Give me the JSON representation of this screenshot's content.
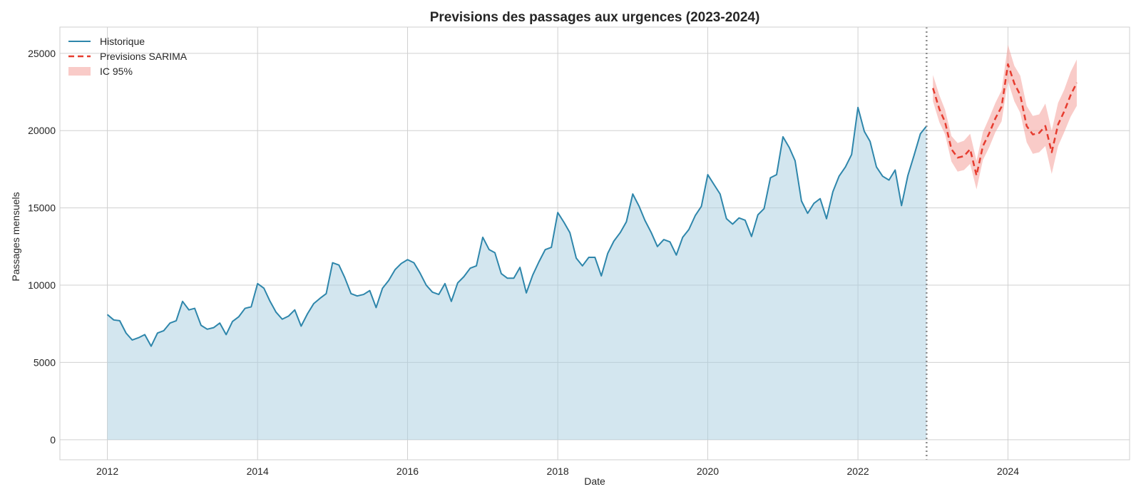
{
  "chart_data": {
    "type": "line",
    "title": "Previsions des passages aux urgences (2023-2024)",
    "xlabel": "Date",
    "ylabel": "Passages mensuels",
    "xlim": [
      "2011-05-15",
      "2025-08-15"
    ],
    "ylim": [
      -1300,
      26700
    ],
    "x_ticks": [
      "2012",
      "2014",
      "2016",
      "2018",
      "2020",
      "2022",
      "2024"
    ],
    "y_ticks": [
      0,
      5000,
      10000,
      15000,
      20000,
      25000
    ],
    "grid": true,
    "legend_position": "top-left",
    "forecast_start_marker": "2022-12",
    "colors": {
      "historique": "#2e86ab",
      "historique_fill": "#a8cde0",
      "previsions": "#e63c2f",
      "ic_fill": "#f4a19a",
      "grid": "#d0d0d0",
      "marker_line": "#8c8c8c"
    },
    "legend": [
      {
        "key": "historique",
        "label": "Historique",
        "style": "line"
      },
      {
        "key": "previsions",
        "label": "Previsions SARIMA",
        "style": "dashed"
      },
      {
        "key": "ic",
        "label": "IC 95%",
        "style": "band"
      }
    ],
    "series": [
      {
        "key": "historique",
        "start": "2012-01",
        "values": [
          8100,
          7750,
          7700,
          6900,
          6450,
          6600,
          6800,
          6050,
          6900,
          7050,
          7550,
          7700,
          8950,
          8400,
          8500,
          7400,
          7150,
          7250,
          7550,
          6800,
          7650,
          7950,
          8500,
          8600,
          10100,
          9800,
          9000,
          8250,
          7800,
          8000,
          8400,
          7350,
          8150,
          8800,
          9150,
          9450,
          11450,
          11300,
          10500,
          9450,
          9300,
          9400,
          9650,
          8550,
          9800,
          10300,
          11000,
          11400,
          11650,
          11450,
          10800,
          10000,
          9550,
          9400,
          10100,
          8950,
          10150,
          10550,
          11100,
          11250,
          13100,
          12300,
          12100,
          10750,
          10450,
          10450,
          11150,
          9500,
          10650,
          11500,
          12300,
          12450,
          14700,
          14050,
          13400,
          11750,
          11250,
          11800,
          11800,
          10600,
          12050,
          12850,
          13400,
          14100,
          15900,
          15100,
          14200,
          13400,
          12500,
          12950,
          12800,
          11950,
          13100,
          13600,
          14500,
          15100,
          17150,
          16500,
          15900,
          14300,
          13950,
          14350,
          14200,
          13150,
          14550,
          14950,
          16950,
          17150,
          19600,
          18900,
          18050,
          15450,
          14650,
          15300,
          15600,
          14300,
          16050,
          17050,
          17650,
          18450,
          21500,
          19950,
          19300,
          17650,
          17050,
          16800,
          17450,
          15150,
          17100,
          18400,
          19800,
          20300
        ]
      },
      {
        "key": "previsions",
        "start": "2023-01",
        "values": [
          22750,
          21400,
          20550,
          18800,
          18250,
          18350,
          18800,
          17100,
          19000,
          19800,
          20800,
          21550,
          24300,
          23050,
          22300,
          20300,
          19750,
          19850,
          20300,
          18600,
          20400,
          21250,
          22300,
          23100
        ],
        "ci_lower": [
          21900,
          20550,
          19750,
          18000,
          17350,
          17450,
          17850,
          16200,
          18100,
          18900,
          19900,
          20600,
          23200,
          21900,
          21150,
          19250,
          18500,
          18600,
          19000,
          17200,
          19000,
          19900,
          20900,
          21600
        ],
        "ci_upper": [
          23600,
          22300,
          21350,
          19650,
          19200,
          19350,
          19800,
          18050,
          19900,
          20800,
          21800,
          22600,
          25550,
          24200,
          23550,
          21600,
          20950,
          21050,
          21750,
          20000,
          21800,
          22650,
          23800,
          24600
        ]
      }
    ]
  }
}
